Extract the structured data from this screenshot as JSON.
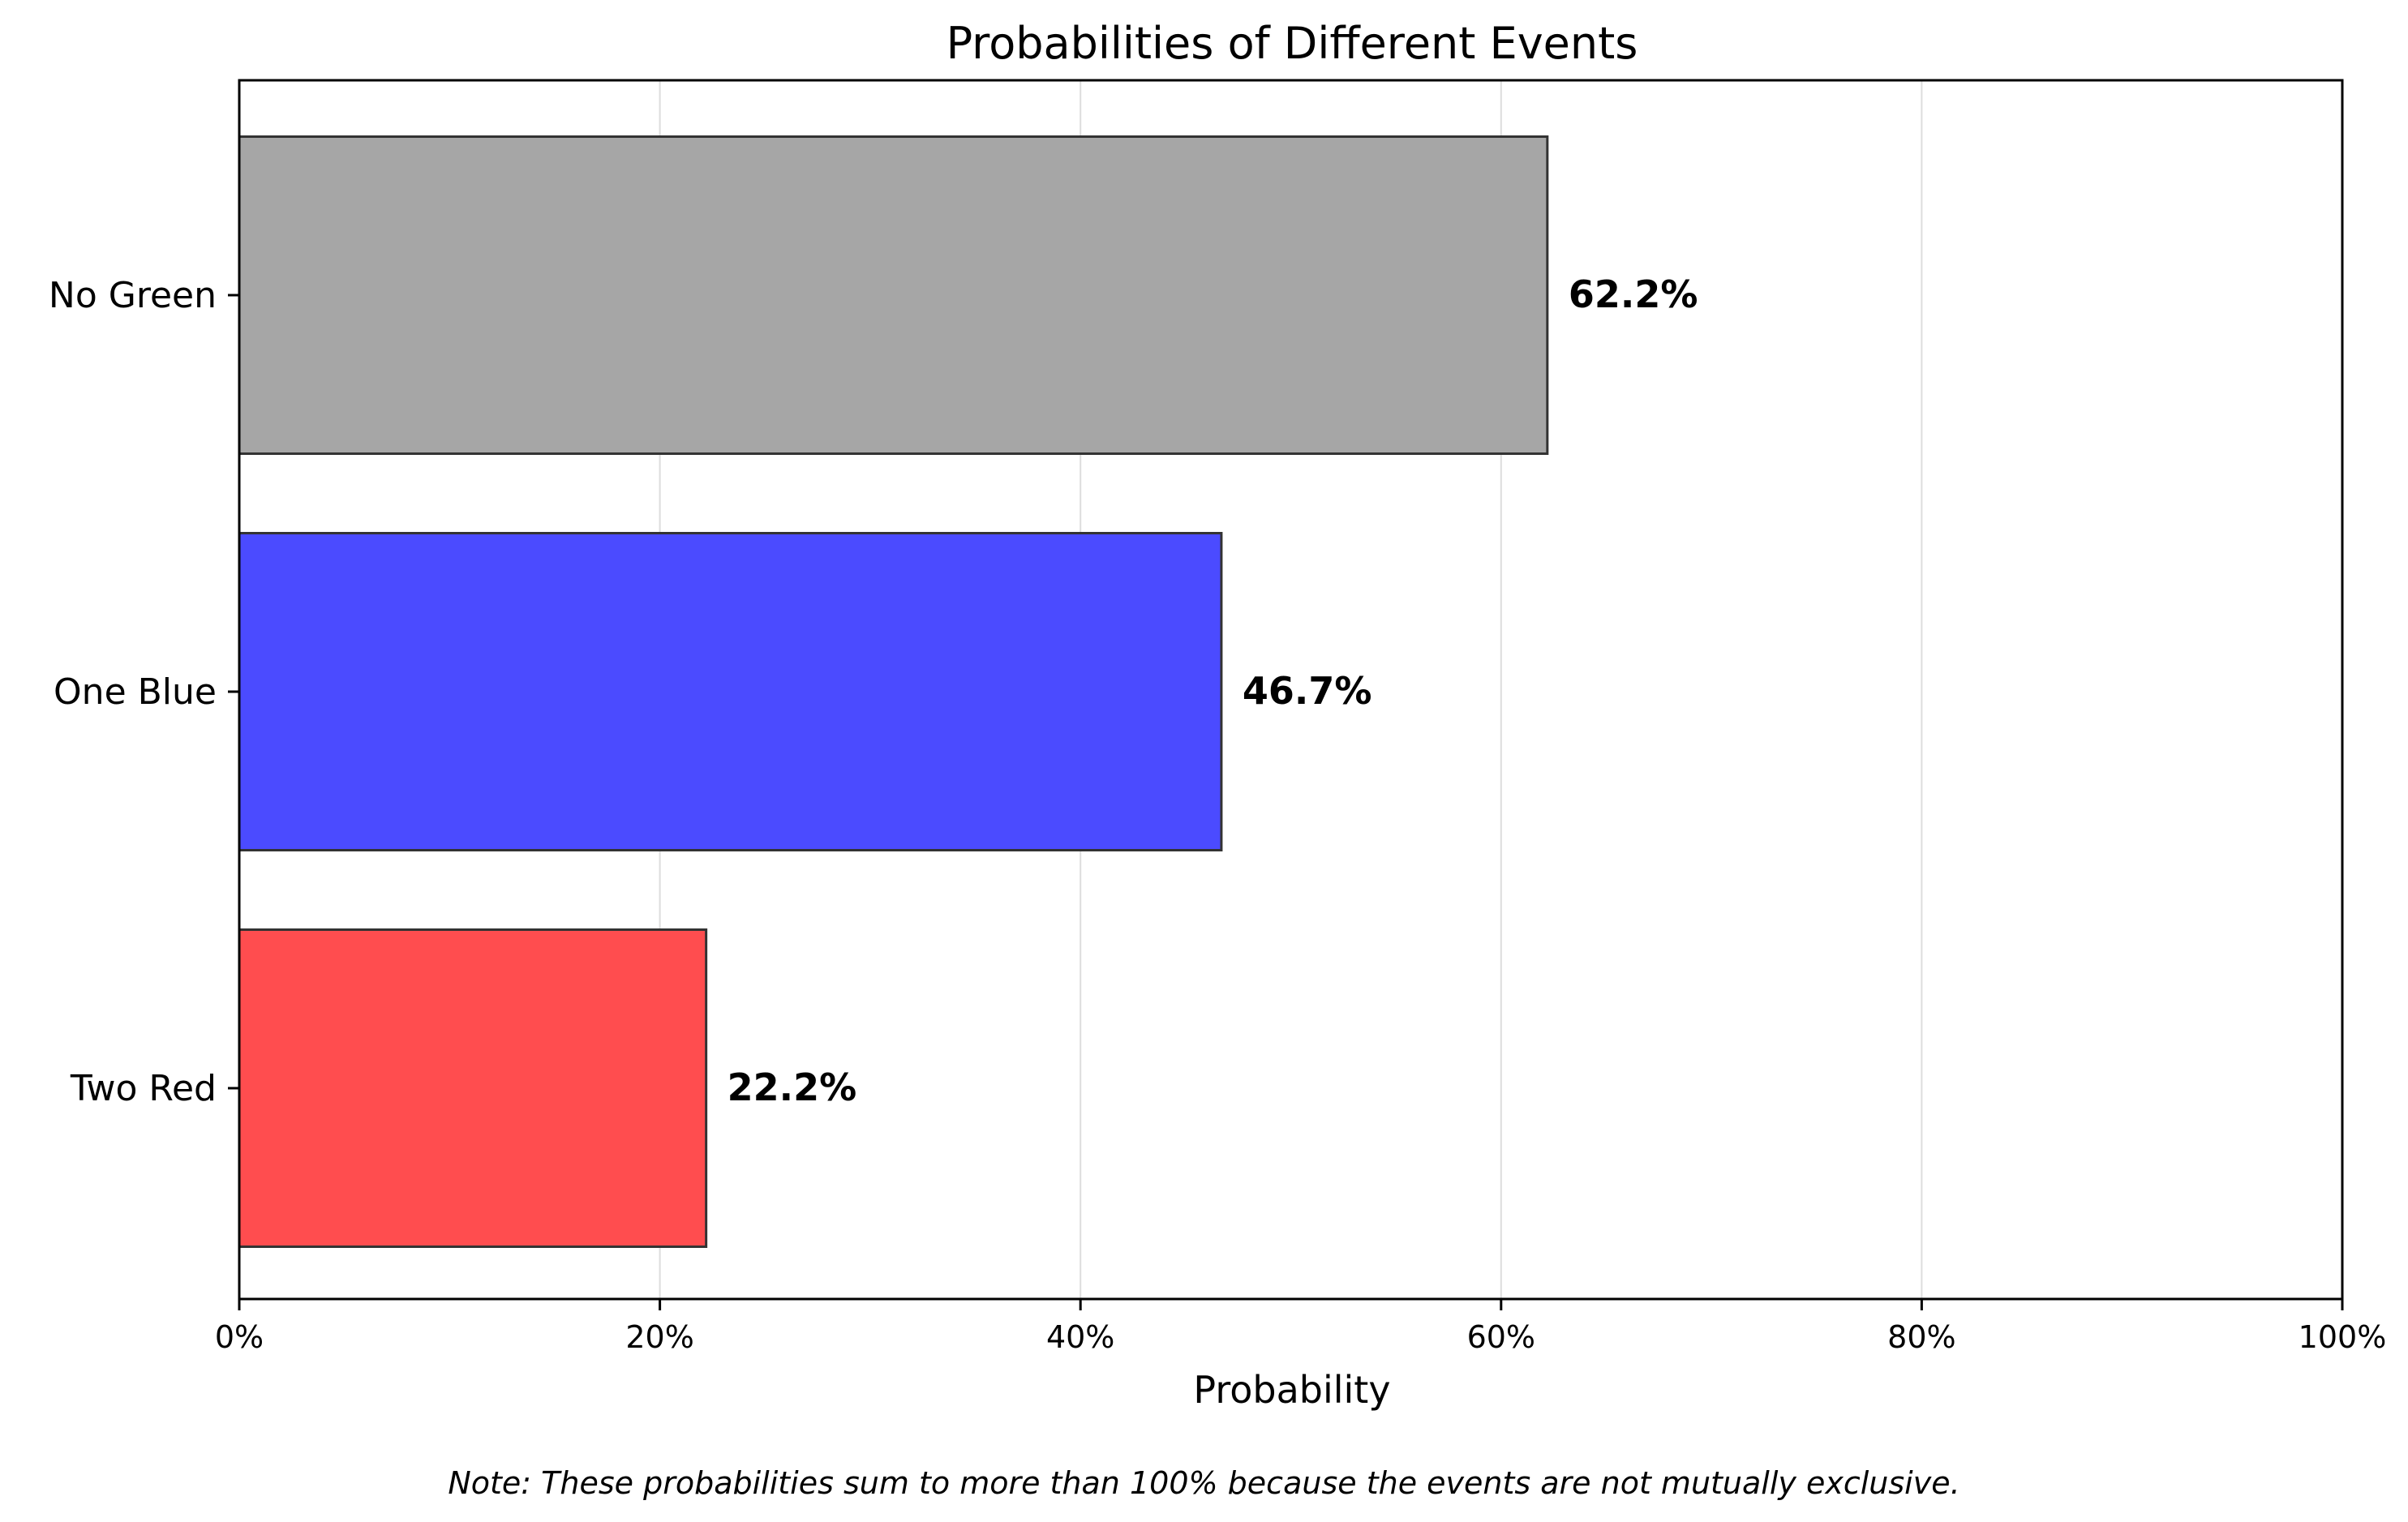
{
  "chart_data": {
    "type": "bar",
    "orientation": "horizontal",
    "title": "Probabilities of Different Events",
    "xlabel": "Probability",
    "ylabel": "",
    "xlim": [
      0,
      1
    ],
    "x_ticks": [
      "0%",
      "20%",
      "40%",
      "60%",
      "80%",
      "100%"
    ],
    "categories": [
      "Two Red",
      "One Blue",
      "No Green"
    ],
    "values": [
      0.222,
      0.467,
      0.622
    ],
    "data_labels": [
      "22.2%",
      "46.7%",
      "62.2%"
    ],
    "colors": [
      "#ff4d4f",
      "#4b4bff",
      "#a6a6a6"
    ],
    "edge_color": "#333333",
    "grid": "x",
    "note": "Note: These probabilities sum to more than 100% because the events are not mutually exclusive."
  }
}
